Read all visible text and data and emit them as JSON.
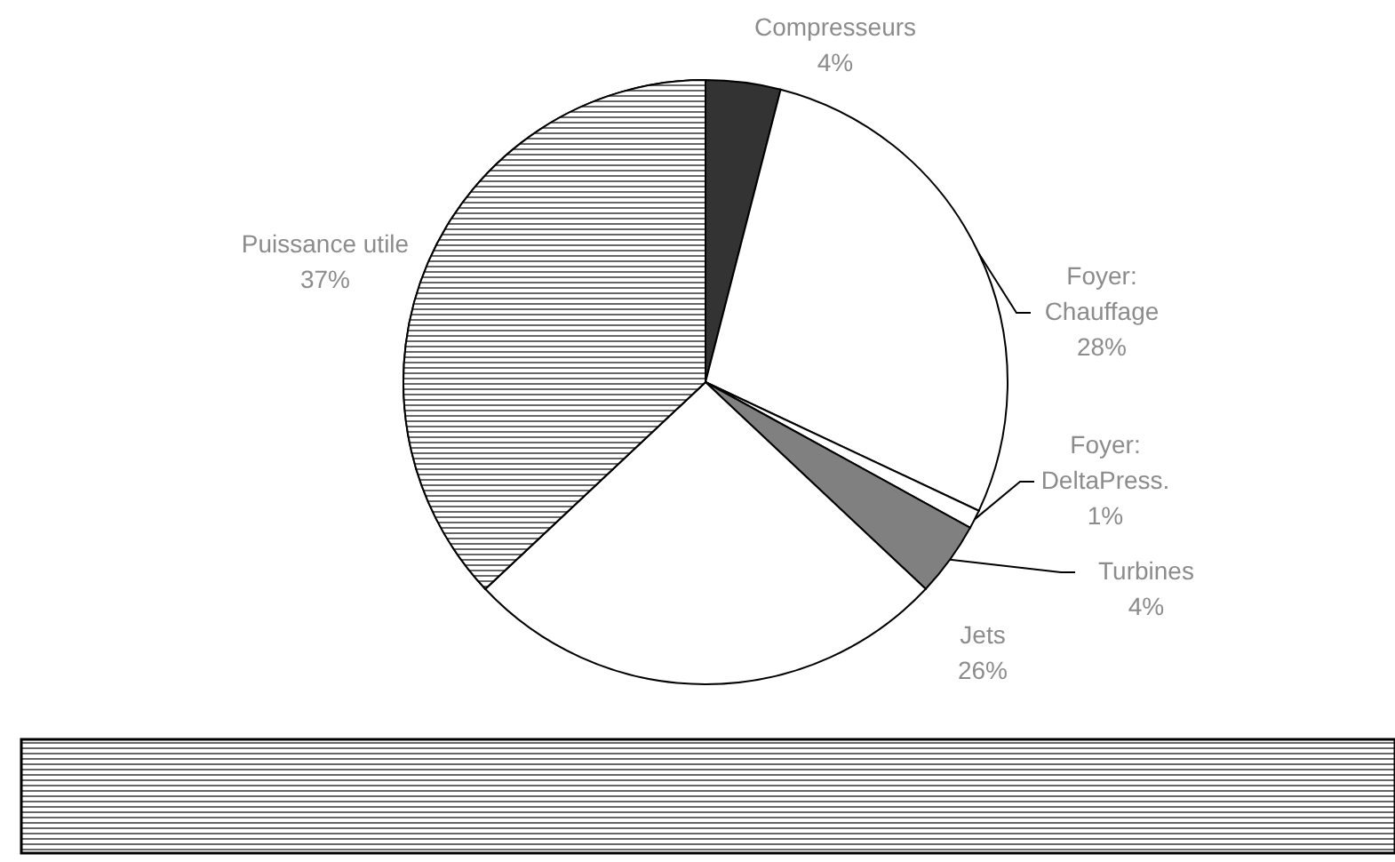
{
  "chart_data": {
    "type": "pie",
    "categories": [
      "Compresseurs",
      "Foyer: Chauffage",
      "Foyer: DeltaPress.",
      "Turbines",
      "Jets",
      "Puissance utile"
    ],
    "values": [
      4,
      28,
      1,
      4,
      26,
      37
    ],
    "value_labels": [
      "4%",
      "28%",
      "1%",
      "4%",
      "26%",
      "37%"
    ],
    "colors": [
      "#333333",
      "#ffffff",
      "#ffffff",
      "#808080",
      "#ffffff",
      "#b0b0b0"
    ]
  }
}
